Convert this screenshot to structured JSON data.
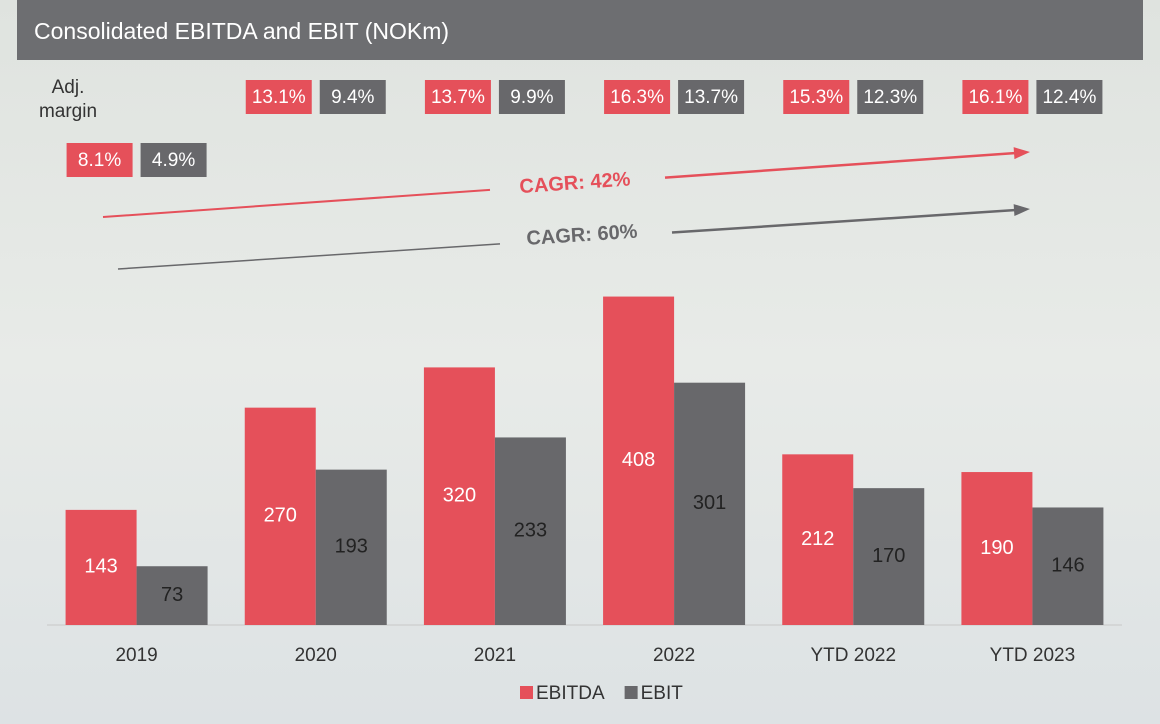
{
  "chart_data": {
    "type": "bar",
    "title": "Consolidated EBITDA and EBIT (NOKm)",
    "categories": [
      "2019",
      "2020",
      "2021",
      "2022",
      "YTD 2022",
      "YTD 2023"
    ],
    "series": [
      {
        "name": "EBITDA",
        "color": "#e5505a",
        "values": [
          143,
          270,
          320,
          408,
          212,
          190
        ]
      },
      {
        "name": "EBIT",
        "color": "#68686b",
        "values": [
          73,
          193,
          233,
          301,
          170,
          146
        ]
      }
    ],
    "ylim": [
      0,
      500
    ],
    "margin_label": "Adj. margin",
    "margins": [
      {
        "color": "#e5505a",
        "values": [
          8.1,
          13.1,
          13.7,
          16.3,
          15.3,
          16.1
        ],
        "value_labels": [
          "8.1%",
          "13.1%",
          "13.7%",
          "16.3%",
          "15.3%",
          "16.1%"
        ]
      },
      {
        "color": "#68686b",
        "values": [
          4.9,
          9.4,
          9.9,
          13.7,
          12.3,
          12.4
        ],
        "value_labels": [
          "4.9%",
          "9.4%",
          "9.9%",
          "13.7%",
          "12.3%",
          "12.4%"
        ]
      }
    ],
    "annotations": [
      {
        "text": "CAGR: 42%",
        "color": "#e5505a"
      },
      {
        "text": "CAGR: 60%",
        "color": "#68686b"
      }
    ]
  }
}
